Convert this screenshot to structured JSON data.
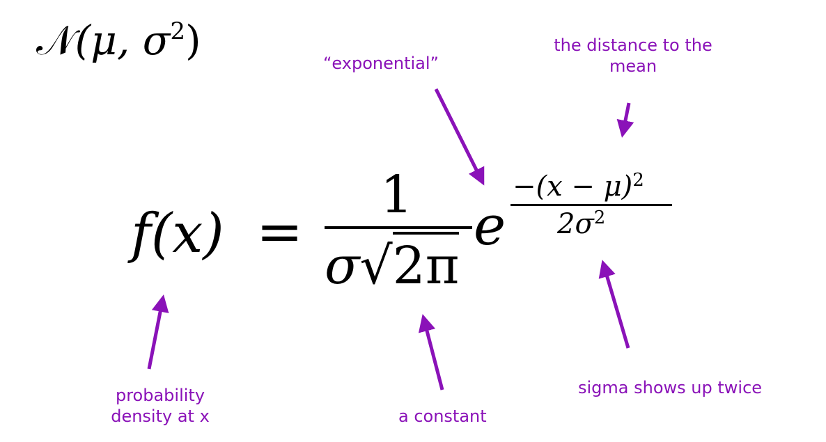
{
  "colors": {
    "annotation": "#8a12b8",
    "ink": "#000000",
    "background": "#ffffff"
  },
  "notation": {
    "symbol": "𝒩",
    "args": "(μ, σ",
    "power": "2",
    "close": ")"
  },
  "formula": {
    "lhs": "f(x)",
    "equals": "=",
    "frac_numerator": "1",
    "frac_sigma": "σ",
    "sqrt_sign": "√",
    "sqrt_content": "2π",
    "base": "e",
    "exp_numerator": "−(x − μ)",
    "exp_numerator_power": "2",
    "exp_denominator": "2σ",
    "exp_denominator_power": "2"
  },
  "annotations": {
    "exponential": "“exponential”",
    "distance_line1": "the distance to the",
    "distance_line2": "mean",
    "probability_line1": "probability",
    "probability_line2": "density at x",
    "constant": "a constant",
    "sigma_twice": "sigma shows up twice"
  }
}
